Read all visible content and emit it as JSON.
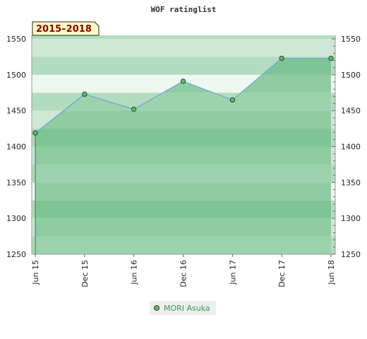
{
  "chart_data": {
    "type": "area",
    "title": "WOF ratinglist",
    "period_label": "2015–2018",
    "x_ticks": [
      "Jun 15",
      "Dec 15",
      "Jun 16",
      "Dec 16",
      "Jun 17",
      "Dec 17",
      "Jun 18"
    ],
    "y_ticks": [
      "1250",
      "1300",
      "1350",
      "1400",
      "1450",
      "1500",
      "1550"
    ],
    "ylim": [
      1250,
      1555
    ],
    "series": [
      {
        "name": "MORI Asuka",
        "x": [
          "Jun 15",
          "Dec 15",
          "Jun 16",
          "Dec 16",
          "Jun 17",
          "Dec 17",
          "Jun 18"
        ],
        "values": [
          1419,
          1473,
          1452,
          1491,
          1465,
          1523,
          1523
        ]
      }
    ],
    "grid": true,
    "legend_position": "bottom-center",
    "colors": {
      "line": "#6aa7d6",
      "area": "#7fc494",
      "marker": "#5fb86f",
      "marker_edge": "#1f4f2a"
    }
  }
}
